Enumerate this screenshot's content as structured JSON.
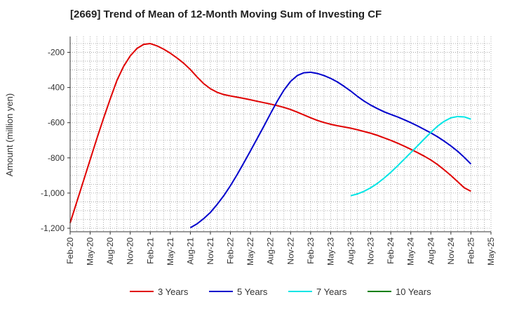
{
  "chart_data": {
    "type": "line",
    "title": "[2669]  Trend of Mean of 12-Month Moving Sum of Investing CF",
    "xlabel": "",
    "ylabel": "Amount (million yen)",
    "ylim": [
      -1220,
      -110
    ],
    "yticks": [
      -200,
      -400,
      -600,
      -800,
      -1000,
      -1200
    ],
    "ytick_labels": [
      "-200",
      "-400",
      "-600",
      "-800",
      "-1,000",
      "-1,200"
    ],
    "x_categories": [
      "Feb-20",
      "May-20",
      "Aug-20",
      "Nov-20",
      "Feb-21",
      "May-21",
      "Aug-21",
      "Nov-21",
      "Feb-22",
      "May-22",
      "Aug-22",
      "Nov-22",
      "Feb-23",
      "May-23",
      "Aug-23",
      "Nov-23",
      "Feb-24",
      "May-24",
      "Aug-24",
      "Nov-24",
      "Feb-25",
      "May-25"
    ],
    "grid": true,
    "legend_position": "bottom",
    "series": [
      {
        "name": "3 Years",
        "color": "#e00000",
        "points": [
          [
            "Feb-20",
            -1170
          ],
          [
            "Mar-20",
            -1050
          ],
          [
            "Apr-20",
            -930
          ],
          [
            "May-20",
            -810
          ],
          [
            "Jun-20",
            -690
          ],
          [
            "Jul-20",
            -575
          ],
          [
            "Aug-20",
            -465
          ],
          [
            "Sep-20",
            -360
          ],
          [
            "Oct-20",
            -280
          ],
          [
            "Nov-20",
            -220
          ],
          [
            "Dec-20",
            -178
          ],
          [
            "Jan-21",
            -155
          ],
          [
            "Feb-21",
            -150
          ],
          [
            "Mar-21",
            -163
          ],
          [
            "Apr-21",
            -182
          ],
          [
            "May-21",
            -205
          ],
          [
            "Jun-21",
            -232
          ],
          [
            "Jul-21",
            -262
          ],
          [
            "Aug-21",
            -298
          ],
          [
            "Sep-21",
            -340
          ],
          [
            "Oct-21",
            -378
          ],
          [
            "Nov-21",
            -407
          ],
          [
            "Dec-21",
            -427
          ],
          [
            "Jan-22",
            -440
          ],
          [
            "Feb-22",
            -448
          ],
          [
            "Mar-22",
            -455
          ],
          [
            "Apr-22",
            -462
          ],
          [
            "May-22",
            -470
          ],
          [
            "Jun-22",
            -478
          ],
          [
            "Jul-22",
            -486
          ],
          [
            "Aug-22",
            -494
          ],
          [
            "Sep-22",
            -503
          ],
          [
            "Oct-22",
            -513
          ],
          [
            "Nov-22",
            -525
          ],
          [
            "Dec-22",
            -540
          ],
          [
            "Jan-23",
            -556
          ],
          [
            "Feb-23",
            -572
          ],
          [
            "Mar-23",
            -587
          ],
          [
            "Apr-23",
            -599
          ],
          [
            "May-23",
            -609
          ],
          [
            "Jun-23",
            -617
          ],
          [
            "Jul-23",
            -624
          ],
          [
            "Aug-23",
            -631
          ],
          [
            "Sep-23",
            -640
          ],
          [
            "Oct-23",
            -650
          ],
          [
            "Nov-23",
            -660
          ],
          [
            "Dec-23",
            -672
          ],
          [
            "Jan-24",
            -686
          ],
          [
            "Feb-24",
            -700
          ],
          [
            "Mar-24",
            -716
          ],
          [
            "Apr-24",
            -733
          ],
          [
            "May-24",
            -751
          ],
          [
            "Jun-24",
            -770
          ],
          [
            "Jul-24",
            -790
          ],
          [
            "Aug-24",
            -812
          ],
          [
            "Sep-24",
            -838
          ],
          [
            "Oct-24",
            -868
          ],
          [
            "Nov-24",
            -900
          ],
          [
            "Dec-24",
            -935
          ],
          [
            "Jan-25",
            -970
          ],
          [
            "Feb-25",
            -990
          ]
        ]
      },
      {
        "name": "5 Years",
        "color": "#0000cc",
        "points": [
          [
            "Aug-21",
            -1197
          ],
          [
            "Sep-21",
            -1175
          ],
          [
            "Oct-21",
            -1145
          ],
          [
            "Nov-21",
            -1110
          ],
          [
            "Dec-21",
            -1065
          ],
          [
            "Jan-22",
            -1015
          ],
          [
            "Feb-22",
            -958
          ],
          [
            "Mar-22",
            -895
          ],
          [
            "Apr-22",
            -828
          ],
          [
            "May-22",
            -760
          ],
          [
            "Jun-22",
            -690
          ],
          [
            "Jul-22",
            -620
          ],
          [
            "Aug-22",
            -548
          ],
          [
            "Sep-22",
            -478
          ],
          [
            "Oct-22",
            -415
          ],
          [
            "Nov-22",
            -365
          ],
          [
            "Dec-22",
            -332
          ],
          [
            "Jan-23",
            -316
          ],
          [
            "Feb-23",
            -313
          ],
          [
            "Mar-23",
            -320
          ],
          [
            "Apr-23",
            -332
          ],
          [
            "May-23",
            -348
          ],
          [
            "Jun-23",
            -368
          ],
          [
            "Jul-23",
            -393
          ],
          [
            "Aug-23",
            -420
          ],
          [
            "Sep-23",
            -450
          ],
          [
            "Oct-23",
            -477
          ],
          [
            "Nov-23",
            -500
          ],
          [
            "Dec-23",
            -520
          ],
          [
            "Jan-24",
            -538
          ],
          [
            "Feb-24",
            -553
          ],
          [
            "Mar-24",
            -567
          ],
          [
            "Apr-24",
            -583
          ],
          [
            "May-24",
            -600
          ],
          [
            "Jun-24",
            -618
          ],
          [
            "Jul-24",
            -638
          ],
          [
            "Aug-24",
            -658
          ],
          [
            "Sep-24",
            -680
          ],
          [
            "Oct-24",
            -705
          ],
          [
            "Nov-24",
            -732
          ],
          [
            "Dec-24",
            -762
          ],
          [
            "Jan-25",
            -797
          ],
          [
            "Feb-25",
            -835
          ]
        ]
      },
      {
        "name": "7 Years",
        "color": "#00e5e5",
        "points": [
          [
            "Aug-23",
            -1015
          ],
          [
            "Sep-23",
            -1005
          ],
          [
            "Oct-23",
            -990
          ],
          [
            "Nov-23",
            -970
          ],
          [
            "Dec-23",
            -945
          ],
          [
            "Jan-24",
            -915
          ],
          [
            "Feb-24",
            -882
          ],
          [
            "Mar-24",
            -846
          ],
          [
            "Apr-24",
            -808
          ],
          [
            "May-24",
            -770
          ],
          [
            "Jun-24",
            -732
          ],
          [
            "Jul-24",
            -693
          ],
          [
            "Aug-24",
            -655
          ],
          [
            "Sep-24",
            -620
          ],
          [
            "Oct-24",
            -592
          ],
          [
            "Nov-24",
            -572
          ],
          [
            "Dec-24",
            -565
          ],
          [
            "Jan-25",
            -567
          ],
          [
            "Feb-25",
            -580
          ]
        ]
      },
      {
        "name": "10 Years",
        "color": "#008000",
        "points": []
      }
    ]
  }
}
